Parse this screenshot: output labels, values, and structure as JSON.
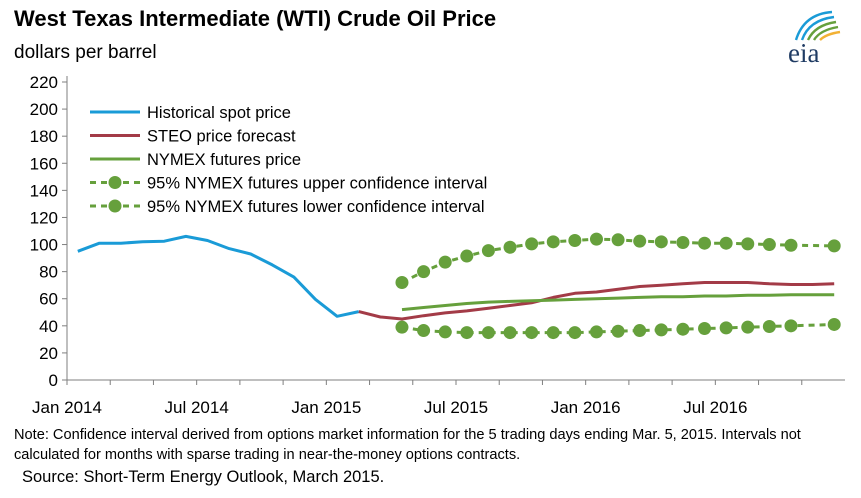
{
  "header": {
    "title": "West Texas Intermediate (WTI) Crude Oil Price",
    "subtitle": "dollars per barrel",
    "logo_text": "eia"
  },
  "footer": {
    "note": "Note: Confidence interval derived from options market information for the 5 trading days ending Mar. 5, 2015. Intervals not calculated for months with sparse trading in near-the-money options contracts.",
    "source": "Source: Short-Term Energy Outlook, March 2015."
  },
  "colors": {
    "historical": "#1a9bd7",
    "steo": "#a33b47",
    "nymex": "#66a03c",
    "axis": "#7f7f7f",
    "logo_text": "#1f3b63"
  },
  "chart_data": {
    "type": "line",
    "x_type": "month",
    "x_ticks": [
      "Jan 2014",
      "Jul 2014",
      "Jan 2015",
      "Jul 2015",
      "Jan 2016",
      "Jul 2016"
    ],
    "y_ticks": [
      0,
      20,
      40,
      60,
      80,
      100,
      120,
      140,
      160,
      180,
      200,
      220
    ],
    "ylim": [
      0,
      220
    ],
    "xlim": [
      "2014-01",
      "2016-12"
    ],
    "grid": false,
    "legend_position": "top-left",
    "series": [
      {
        "name": "Historical spot price",
        "style": "solid",
        "color": "#1a9bd7",
        "points": [
          [
            "2014-01",
            95
          ],
          [
            "2014-02",
            101
          ],
          [
            "2014-03",
            101
          ],
          [
            "2014-04",
            102
          ],
          [
            "2014-05",
            102.5
          ],
          [
            "2014-06",
            106
          ],
          [
            "2014-07",
            103
          ],
          [
            "2014-08",
            97
          ],
          [
            "2014-09",
            93
          ],
          [
            "2014-10",
            85
          ],
          [
            "2014-11",
            76
          ],
          [
            "2014-12",
            59.5
          ],
          [
            "2015-01",
            47
          ],
          [
            "2015-02",
            50.5
          ]
        ]
      },
      {
        "name": "STEO price forecast",
        "style": "solid",
        "color": "#a33b47",
        "points": [
          [
            "2015-02",
            50.5
          ],
          [
            "2015-03",
            46.5
          ],
          [
            "2015-04",
            45
          ],
          [
            "2015-05",
            47.5
          ],
          [
            "2015-06",
            49.5
          ],
          [
            "2015-07",
            51
          ],
          [
            "2015-08",
            53
          ],
          [
            "2015-09",
            55
          ],
          [
            "2015-10",
            57
          ],
          [
            "2015-11",
            61
          ],
          [
            "2015-12",
            64
          ],
          [
            "2016-01",
            65
          ],
          [
            "2016-02",
            67
          ],
          [
            "2016-03",
            69
          ],
          [
            "2016-04",
            70
          ],
          [
            "2016-05",
            71
          ],
          [
            "2016-06",
            72
          ],
          [
            "2016-07",
            72
          ],
          [
            "2016-08",
            72
          ],
          [
            "2016-09",
            71
          ],
          [
            "2016-10",
            70.5
          ],
          [
            "2016-11",
            70.5
          ],
          [
            "2016-12",
            71
          ]
        ]
      },
      {
        "name": "NYMEX futures price",
        "style": "solid",
        "color": "#66a03c",
        "points": [
          [
            "2015-04",
            52
          ],
          [
            "2015-05",
            53.5
          ],
          [
            "2015-06",
            55
          ],
          [
            "2015-07",
            56.5
          ],
          [
            "2015-08",
            57.5
          ],
          [
            "2015-09",
            58
          ],
          [
            "2015-10",
            58.5
          ],
          [
            "2015-11",
            59
          ],
          [
            "2015-12",
            59.5
          ],
          [
            "2016-01",
            60
          ],
          [
            "2016-02",
            60.5
          ],
          [
            "2016-03",
            61
          ],
          [
            "2016-04",
            61.5
          ],
          [
            "2016-05",
            61.5
          ],
          [
            "2016-06",
            62
          ],
          [
            "2016-07",
            62
          ],
          [
            "2016-08",
            62.5
          ],
          [
            "2016-09",
            62.5
          ],
          [
            "2016-10",
            63
          ],
          [
            "2016-11",
            63
          ],
          [
            "2016-12",
            63
          ]
        ]
      },
      {
        "name": "95% NYMEX futures upper confidence interval",
        "style": "dashed-markers",
        "color": "#66a03c",
        "points": [
          [
            "2015-04",
            72
          ],
          [
            "2015-05",
            80
          ],
          [
            "2015-06",
            87
          ],
          [
            "2015-07",
            91.5
          ],
          [
            "2015-08",
            95.5
          ],
          [
            "2015-09",
            98
          ],
          [
            "2015-10",
            100.5
          ],
          [
            "2015-11",
            102
          ],
          [
            "2015-12",
            103
          ],
          [
            "2016-01",
            104
          ],
          [
            "2016-02",
            103.5
          ],
          [
            "2016-03",
            102.5
          ],
          [
            "2016-04",
            102
          ],
          [
            "2016-05",
            101.5
          ],
          [
            "2016-06",
            101
          ],
          [
            "2016-07",
            101
          ],
          [
            "2016-08",
            100.5
          ],
          [
            "2016-09",
            100
          ],
          [
            "2016-10",
            99.5
          ],
          [
            "2016-12",
            99
          ]
        ]
      },
      {
        "name": "95% NYMEX futures lower confidence interval",
        "style": "dashed-markers",
        "color": "#66a03c",
        "points": [
          [
            "2015-04",
            39
          ],
          [
            "2015-05",
            36.5
          ],
          [
            "2015-06",
            35.5
          ],
          [
            "2015-07",
            35
          ],
          [
            "2015-08",
            35
          ],
          [
            "2015-09",
            35
          ],
          [
            "2015-10",
            35
          ],
          [
            "2015-11",
            35
          ],
          [
            "2015-12",
            35
          ],
          [
            "2016-01",
            35.5
          ],
          [
            "2016-02",
            36
          ],
          [
            "2016-03",
            36.5
          ],
          [
            "2016-04",
            37
          ],
          [
            "2016-05",
            37.5
          ],
          [
            "2016-06",
            38
          ],
          [
            "2016-07",
            38.5
          ],
          [
            "2016-08",
            39
          ],
          [
            "2016-09",
            39.5
          ],
          [
            "2016-10",
            40
          ],
          [
            "2016-12",
            41
          ]
        ]
      }
    ]
  }
}
